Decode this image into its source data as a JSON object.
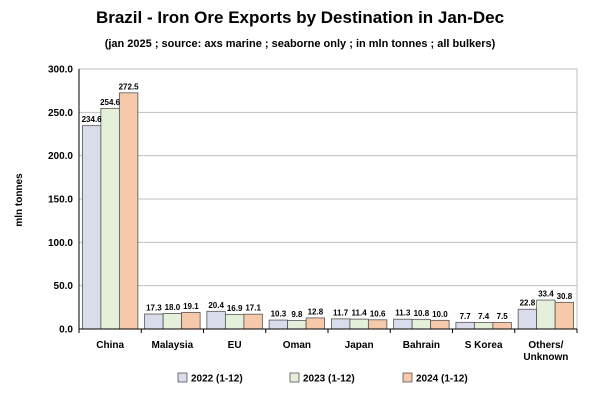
{
  "chart_data": {
    "type": "bar",
    "title": "Brazil - Iron Ore Exports by Destination in Jan-Dec",
    "subtitle": "(jan 2025 ; source: axs marine ; seaborne only ; in mln tonnes ; all bulkers)",
    "ylabel": "mln tonnes",
    "xlabel": "",
    "ylim": [
      0,
      300
    ],
    "yticks": [
      "0.0",
      "50.0",
      "100.0",
      "150.0",
      "200.0",
      "250.0",
      "300.0"
    ],
    "categories": [
      "China",
      "Malaysia",
      "EU",
      "Oman",
      "Japan",
      "Bahrain",
      "S Korea",
      "Others/\nUnknown"
    ],
    "series": [
      {
        "name": "2022 (1-12)",
        "color": "#d9dcea",
        "values": [
          234.6,
          17.3,
          20.4,
          10.3,
          11.7,
          11.3,
          7.7,
          22.8
        ]
      },
      {
        "name": "2023 (1-12)",
        "color": "#e4f0da",
        "values": [
          254.6,
          18.0,
          16.9,
          9.8,
          11.4,
          10.8,
          7.4,
          33.4
        ]
      },
      {
        "name": "2024 (1-12)",
        "color": "#f7c9ab",
        "values": [
          272.5,
          19.1,
          17.1,
          12.8,
          10.6,
          10.0,
          7.5,
          30.8
        ]
      }
    ],
    "grid": "horizontal",
    "legend": "bottom"
  }
}
